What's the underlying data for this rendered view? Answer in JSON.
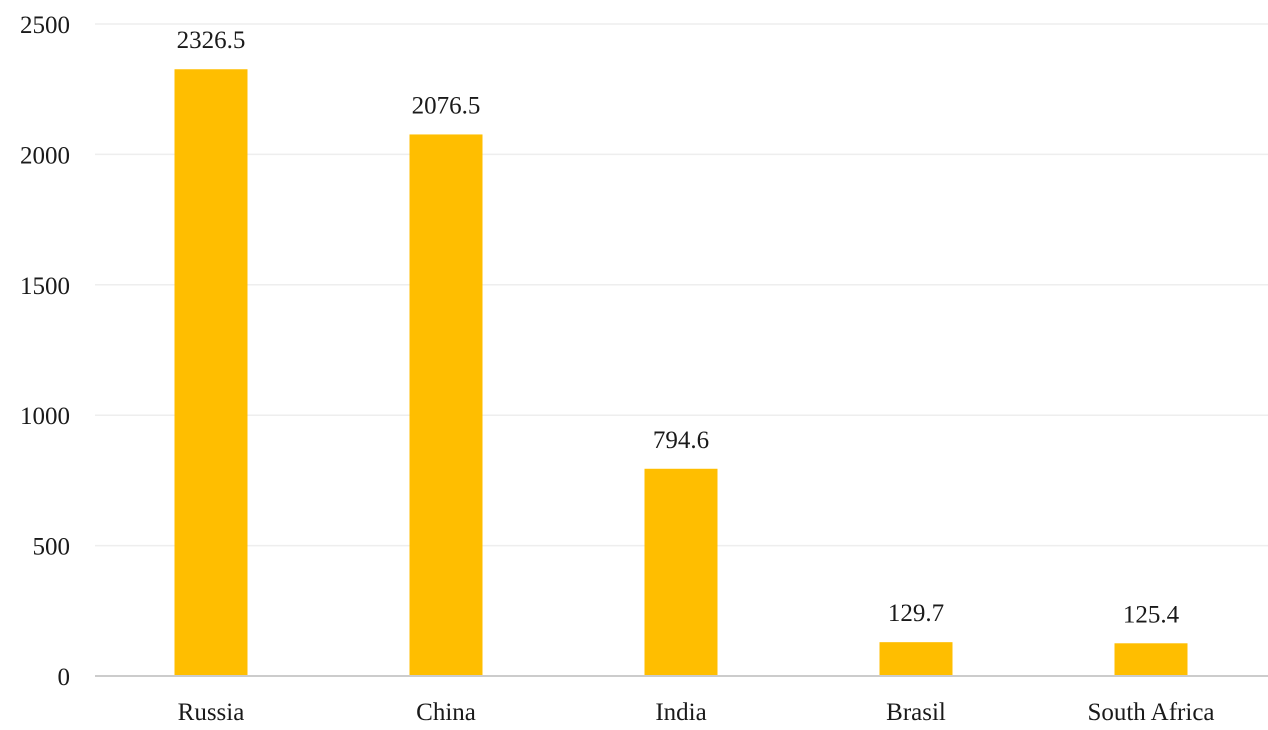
{
  "chart_data": {
    "type": "bar",
    "title": "",
    "xlabel": "",
    "ylabel": "",
    "categories": [
      "Russia",
      "China",
      "India",
      "Brasil",
      "South Africa"
    ],
    "values": [
      2326.5,
      2076.5,
      794.6,
      129.7,
      125.4
    ],
    "data_labels": [
      "2326.5",
      "2076.5",
      "794.6",
      "129.7",
      "125.4"
    ],
    "y_ticks": [
      0,
      500,
      1000,
      1500,
      2000,
      2500
    ],
    "ylim": [
      0,
      2500
    ],
    "grid": true,
    "legend": "none",
    "colors": {
      "bar": "#FFBE00",
      "grid": "#eeeeee",
      "axis": "#cccccc",
      "text": "#1a1a1a"
    }
  }
}
